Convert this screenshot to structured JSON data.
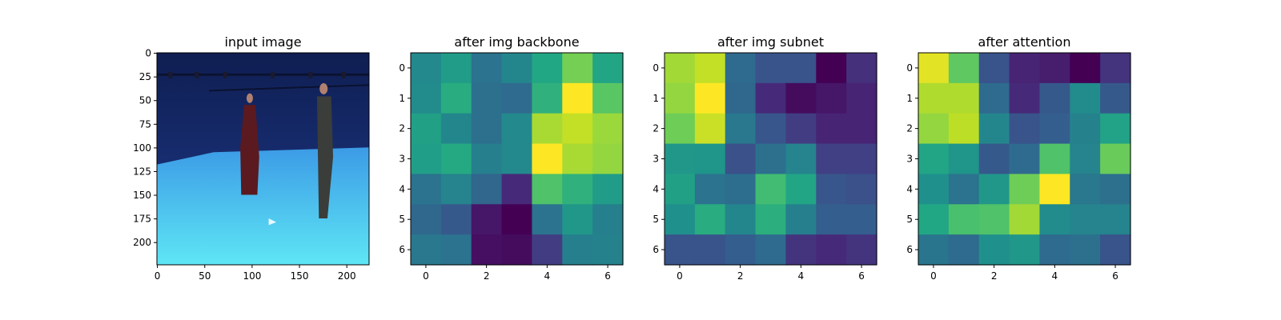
{
  "chart_data": [
    {
      "type": "image",
      "title": "input image",
      "x_ticks": [
        "0",
        "50",
        "100",
        "150",
        "200"
      ],
      "x_tick_values": [
        0,
        50,
        100,
        150,
        200
      ],
      "y_ticks": [
        "0",
        "25",
        "50",
        "75",
        "100",
        "125",
        "150",
        "175",
        "200"
      ],
      "y_tick_values": [
        0,
        25,
        50,
        75,
        100,
        125,
        150,
        175,
        200
      ],
      "xlim": [
        -0.5,
        223.5
      ],
      "ylim": [
        223.5,
        -0.5
      ],
      "scene": {
        "wall_color": "#1e3a8a",
        "floor_color": "#3c9be6",
        "floor_highlight": "#5ee6f5",
        "horizon_y": 115,
        "person_left_color": "#5a1a20",
        "person_right_color": "#3a3d3a"
      }
    },
    {
      "type": "heatmap",
      "title": "after img backbone",
      "x_ticks": [
        "0",
        "2",
        "4",
        "6"
      ],
      "x_tick_values": [
        0,
        2,
        4,
        6
      ],
      "y_ticks": [
        "0",
        "1",
        "2",
        "3",
        "4",
        "5",
        "6"
      ],
      "y_tick_values": [
        0,
        1,
        2,
        3,
        4,
        5,
        6
      ],
      "colormap": "viridis",
      "values": [
        [
          0.47,
          0.55,
          0.38,
          0.46,
          0.6,
          0.79,
          0.59
        ],
        [
          0.48,
          0.62,
          0.37,
          0.35,
          0.64,
          1.0,
          0.74
        ],
        [
          0.57,
          0.46,
          0.37,
          0.47,
          0.87,
          0.91,
          0.85
        ],
        [
          0.56,
          0.61,
          0.43,
          0.47,
          1.0,
          0.87,
          0.84
        ],
        [
          0.38,
          0.45,
          0.33,
          0.12,
          0.72,
          0.64,
          0.55
        ],
        [
          0.34,
          0.28,
          0.06,
          0.0,
          0.38,
          0.53,
          0.43
        ],
        [
          0.4,
          0.38,
          0.04,
          0.03,
          0.18,
          0.43,
          0.44
        ]
      ]
    },
    {
      "type": "heatmap",
      "title": "after img subnet",
      "x_ticks": [
        "0",
        "2",
        "4",
        "6"
      ],
      "x_tick_values": [
        0,
        2,
        4,
        6
      ],
      "y_ticks": [
        "0",
        "1",
        "2",
        "3",
        "4",
        "5",
        "6"
      ],
      "y_tick_values": [
        0,
        1,
        2,
        3,
        4,
        5,
        6
      ],
      "colormap": "viridis",
      "values": [
        [
          0.86,
          0.91,
          0.35,
          0.26,
          0.26,
          0.0,
          0.14
        ],
        [
          0.84,
          1.0,
          0.34,
          0.12,
          0.03,
          0.06,
          0.1
        ],
        [
          0.78,
          0.92,
          0.4,
          0.27,
          0.18,
          0.1,
          0.1
        ],
        [
          0.53,
          0.52,
          0.25,
          0.37,
          0.45,
          0.19,
          0.19
        ],
        [
          0.57,
          0.38,
          0.36,
          0.69,
          0.59,
          0.27,
          0.25
        ],
        [
          0.5,
          0.62,
          0.46,
          0.63,
          0.43,
          0.3,
          0.3
        ],
        [
          0.26,
          0.26,
          0.3,
          0.35,
          0.15,
          0.12,
          0.15
        ]
      ]
    },
    {
      "type": "heatmap",
      "title": "after attention",
      "x_ticks": [
        "0",
        "2",
        "4",
        "6"
      ],
      "x_tick_values": [
        0,
        2,
        4,
        6
      ],
      "y_ticks": [
        "0",
        "1",
        "2",
        "3",
        "4",
        "5",
        "6"
      ],
      "y_tick_values": [
        0,
        1,
        2,
        3,
        4,
        5,
        6
      ],
      "colormap": "viridis",
      "values": [
        [
          0.96,
          0.75,
          0.26,
          0.1,
          0.08,
          0.0,
          0.15
        ],
        [
          0.88,
          0.88,
          0.35,
          0.12,
          0.28,
          0.48,
          0.28
        ],
        [
          0.84,
          0.9,
          0.46,
          0.26,
          0.3,
          0.44,
          0.58
        ],
        [
          0.59,
          0.52,
          0.28,
          0.35,
          0.72,
          0.45,
          0.77
        ],
        [
          0.5,
          0.38,
          0.53,
          0.78,
          1.0,
          0.4,
          0.37
        ],
        [
          0.6,
          0.71,
          0.72,
          0.86,
          0.48,
          0.45,
          0.45
        ],
        [
          0.39,
          0.35,
          0.5,
          0.53,
          0.35,
          0.37,
          0.26
        ]
      ]
    }
  ]
}
